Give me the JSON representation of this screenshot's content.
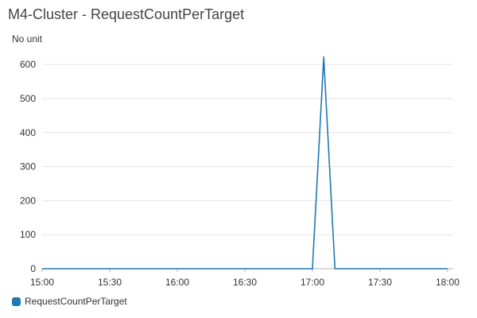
{
  "widget": {
    "title": "M4-Cluster - RequestCountPerTarget",
    "unit_label": "No unit"
  },
  "colors": {
    "series": "#1f77b4",
    "grid": "#e6e6e6",
    "axis": "#b0b0b0",
    "text": "#333333"
  },
  "chart_data": {
    "type": "line",
    "title": "M4-Cluster - RequestCountPerTarget",
    "xlabel": "",
    "ylabel": "No unit",
    "x_ticks": [
      "15:00",
      "15:30",
      "16:00",
      "16:30",
      "17:00",
      "17:30",
      "18:00"
    ],
    "y_ticks": [
      0,
      100,
      200,
      300,
      400,
      500,
      600
    ],
    "xlim": [
      "15:00",
      "18:00"
    ],
    "ylim": [
      0,
      640
    ],
    "grid": true,
    "legend_position": "bottom-left",
    "series": [
      {
        "name": "RequestCountPerTarget",
        "x": [
          "15:00",
          "16:00",
          "17:00",
          "17:05",
          "17:10",
          "17:30",
          "18:00"
        ],
        "y": [
          0,
          0,
          0,
          622,
          0,
          0,
          0
        ]
      }
    ]
  }
}
